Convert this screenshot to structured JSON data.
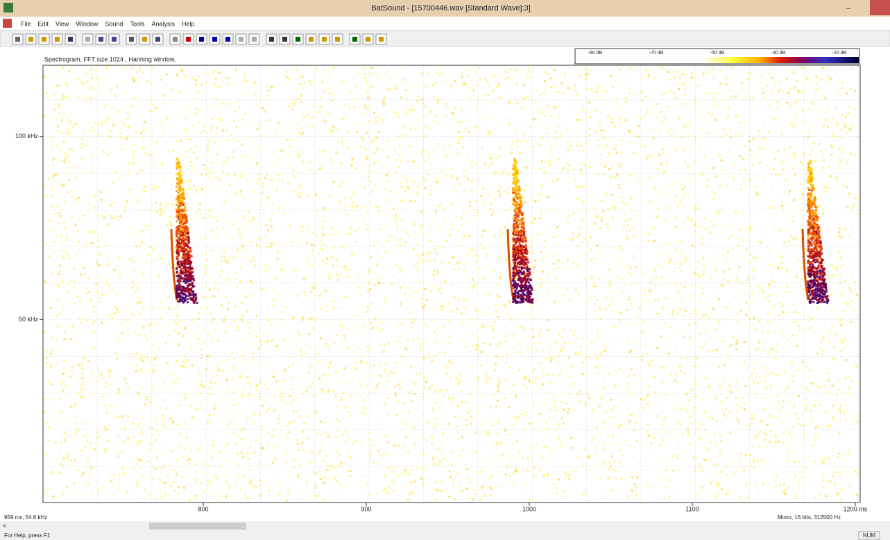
{
  "window": {
    "title": "BatSound - [15700446.wav [Standard Wave]:3]"
  },
  "menu": {
    "items": [
      "File",
      "Edit",
      "View",
      "Window",
      "Sound",
      "Tools",
      "Analysis",
      "Help"
    ]
  },
  "spectrogram": {
    "caption": "Spectrogram, FFT size 1024 , Hanning window.",
    "colorbar_labels": [
      "-90 dB",
      "-70 dB",
      "-50 dB",
      "-30 dB",
      "-10 dB"
    ],
    "xlim": [
      701.7,
      1203
    ],
    "xticks": [
      800,
      900,
      1000,
      1100,
      {
        "value": 1200,
        "label": "1200 ms"
      }
    ],
    "ylim": [
      0,
      119.5
    ],
    "yticks": [
      {
        "value": 100,
        "label": "100 kHz"
      },
      {
        "value": 50,
        "label": "50 kHz"
      }
    ]
  },
  "status": {
    "cursor": "959 ms, 54.8 kHz",
    "format": "Mono, 16 bits, 312500 Hz",
    "help": "For Help, press F1",
    "num": "NUM"
  }
}
